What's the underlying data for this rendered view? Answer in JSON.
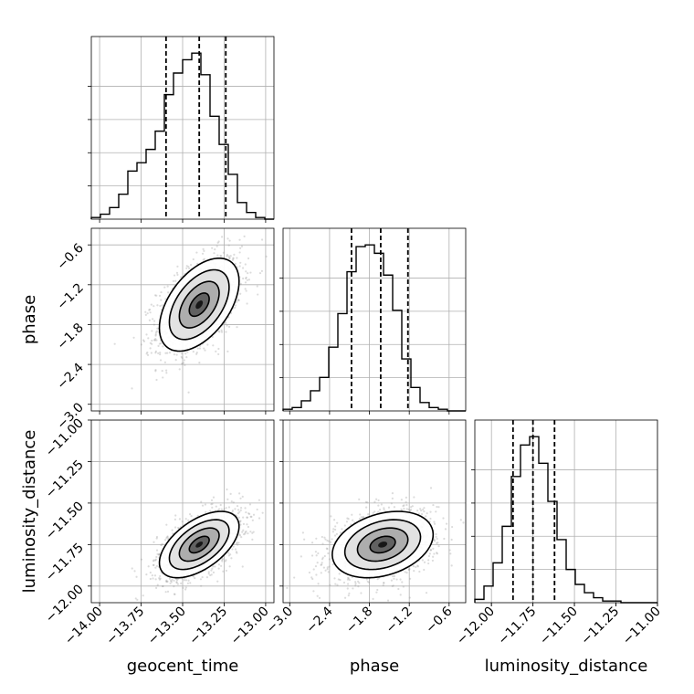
{
  "chart_data": {
    "type": "corner",
    "parameters": [
      {
        "name": "geocent_time",
        "label": "geocent_time",
        "range": [
          -14.05,
          -12.95
        ],
        "ticks": [
          -14.0,
          -13.75,
          -13.5,
          -13.25,
          -13.0
        ],
        "tick_labels": [
          "−14.00",
          "−13.75",
          "−13.50",
          "−13.25",
          "−13.00"
        ],
        "quantiles": [
          -13.6,
          -13.4,
          -13.24
        ]
      },
      {
        "name": "phase",
        "label": "phase",
        "range": [
          -3.1,
          -0.35
        ],
        "ticks": [
          -3.0,
          -2.4,
          -1.8,
          -1.2,
          -0.6
        ],
        "tick_labels": [
          "−3.0",
          "−2.4",
          "−1.8",
          "−1.2",
          "−0.6"
        ],
        "quantiles": [
          -2.07,
          -1.63,
          -1.22
        ]
      },
      {
        "name": "luminosity_distance",
        "label": "luminosity_distance",
        "range": [
          -12.1,
          -11.0
        ],
        "ticks": [
          -12.0,
          -11.75,
          -11.5,
          -11.25,
          -11.0
        ],
        "tick_labels": [
          "−12.00",
          "−11.75",
          "−11.50",
          "−11.25",
          "−11.00"
        ],
        "quantiles": [
          -11.87,
          -11.75,
          -11.62
        ]
      }
    ],
    "histograms": [
      {
        "param": "geocent_time",
        "bin_edges_range": [
          -14.05,
          -12.95
        ],
        "bins": 20,
        "counts": [
          0.01,
          0.03,
          0.07,
          0.15,
          0.29,
          0.34,
          0.42,
          0.53,
          0.75,
          0.88,
          0.96,
          1.0,
          0.87,
          0.62,
          0.45,
          0.27,
          0.1,
          0.04,
          0.01,
          0.0
        ]
      },
      {
        "param": "phase",
        "bin_edges_range": [
          -3.1,
          -0.35
        ],
        "bins": 20,
        "counts": [
          0.01,
          0.02,
          0.06,
          0.12,
          0.2,
          0.38,
          0.58,
          0.83,
          0.98,
          0.99,
          0.94,
          0.81,
          0.6,
          0.31,
          0.14,
          0.05,
          0.02,
          0.01,
          0.0,
          0.0
        ]
      },
      {
        "param": "luminosity_distance",
        "bin_edges_range": [
          -12.1,
          -11.0
        ],
        "bins": 20,
        "counts": [
          0.02,
          0.1,
          0.24,
          0.46,
          0.76,
          0.95,
          1.0,
          0.84,
          0.61,
          0.38,
          0.2,
          0.11,
          0.06,
          0.03,
          0.01,
          0.01,
          0.0,
          0.0,
          0.0,
          0.0
        ]
      }
    ],
    "pairs": [
      {
        "x": "geocent_time",
        "y": "phase",
        "mean": [
          -13.4,
          -1.5
        ],
        "sd": [
          0.12,
          0.35
        ],
        "corr": 0.5
      },
      {
        "x": "geocent_time",
        "y": "luminosity_distance",
        "mean": [
          -13.4,
          -11.75
        ],
        "sd": [
          0.12,
          0.1
        ],
        "corr": 0.55
      },
      {
        "x": "phase",
        "y": "luminosity_distance",
        "mean": [
          -1.6,
          -11.75
        ],
        "sd": [
          0.38,
          0.1
        ],
        "corr": 0.3
      }
    ],
    "contour_levels_sigma": [
      0.5,
      1.0,
      1.5,
      2.0
    ],
    "grid": true
  }
}
